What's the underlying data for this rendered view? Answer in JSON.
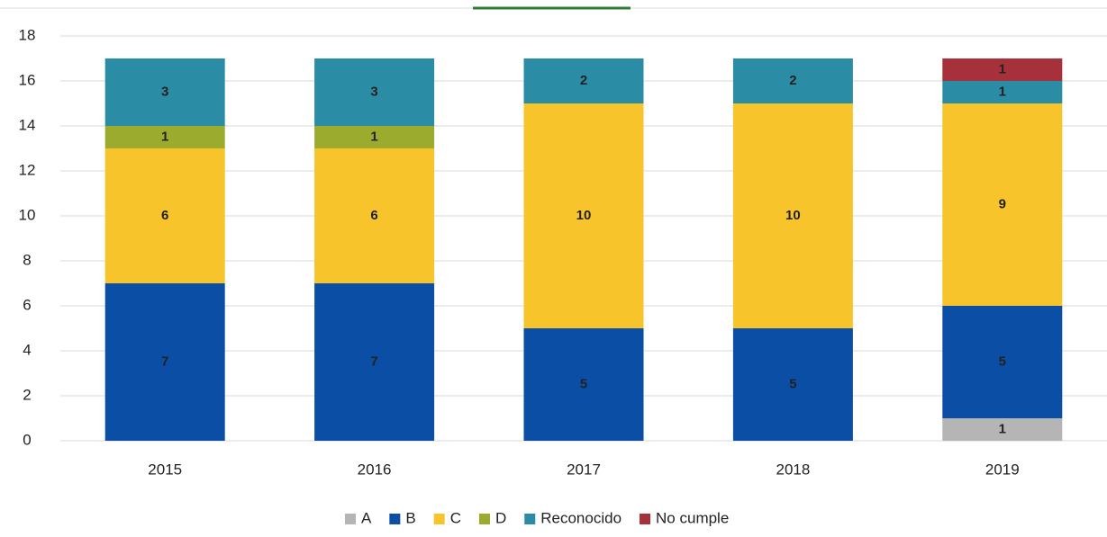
{
  "chart_data": {
    "type": "stacked_bar",
    "categories": [
      "2015",
      "2016",
      "2017",
      "2018",
      "2019"
    ],
    "series": [
      {
        "name": "A",
        "color": "#b5b5b5",
        "values": [
          0,
          0,
          0,
          0,
          1
        ]
      },
      {
        "name": "B",
        "color": "#0b4ea6",
        "values": [
          7,
          7,
          5,
          5,
          5
        ]
      },
      {
        "name": "C",
        "color": "#f8c42c",
        "values": [
          6,
          6,
          10,
          10,
          9
        ]
      },
      {
        "name": "D",
        "color": "#9aab2e",
        "values": [
          1,
          1,
          0,
          0,
          0
        ]
      },
      {
        "name": "Reconocido",
        "color": "#2b8ca6",
        "values": [
          3,
          3,
          2,
          2,
          1
        ]
      },
      {
        "name": "No cumple",
        "color": "#a6313b",
        "values": [
          0,
          0,
          0,
          0,
          1
        ]
      }
    ],
    "ylim": [
      0,
      18
    ],
    "yticks": [
      0,
      2,
      4,
      6,
      8,
      10,
      12,
      14,
      16,
      18
    ],
    "grid": true,
    "legend": "bottom"
  }
}
